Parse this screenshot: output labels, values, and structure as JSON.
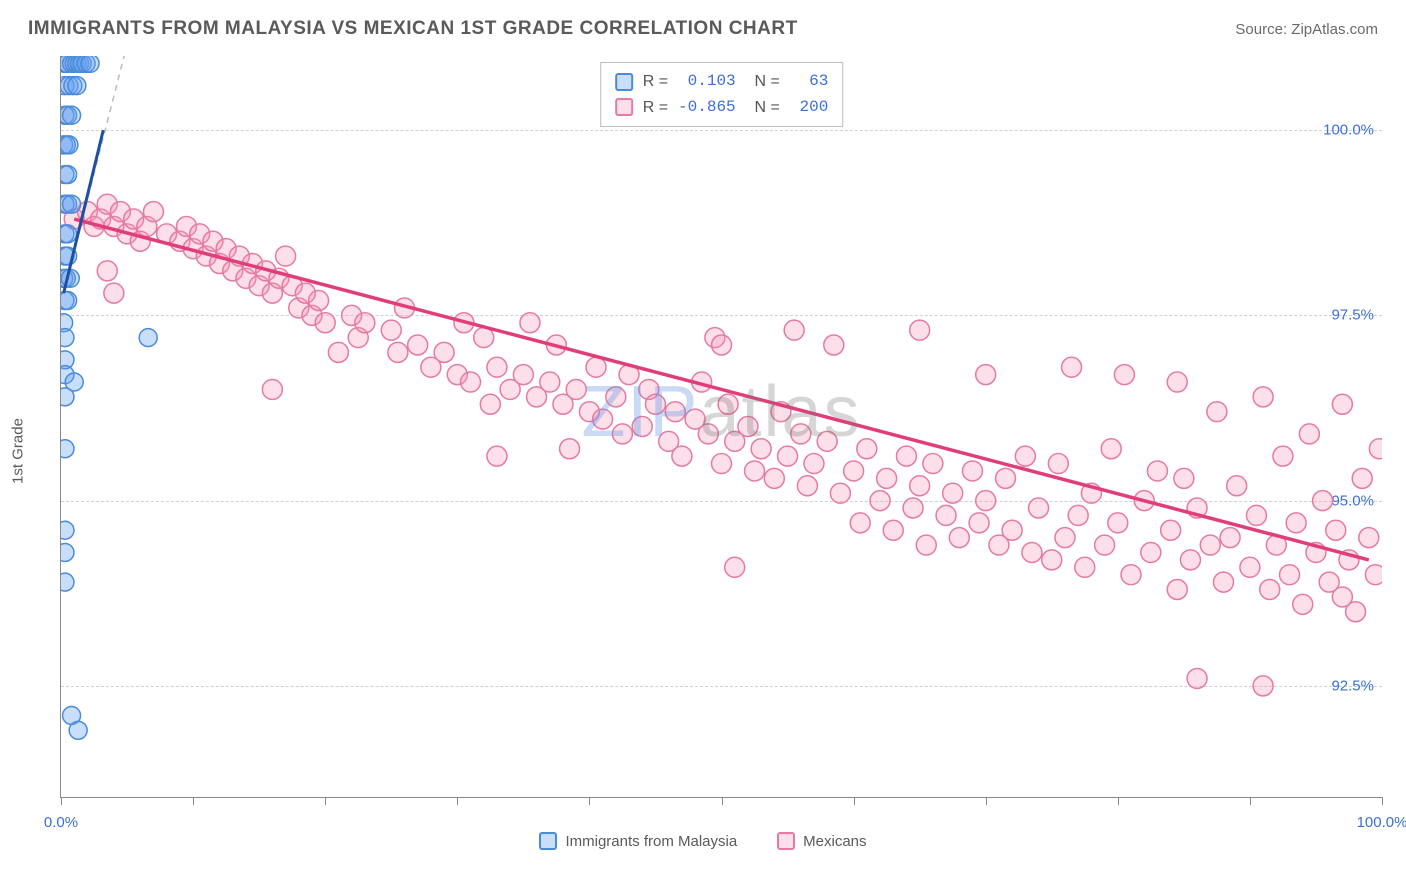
{
  "header": {
    "title": "IMMIGRANTS FROM MALAYSIA VS MEXICAN 1ST GRADE CORRELATION CHART",
    "source_prefix": "Source: ",
    "source_name": "ZipAtlas.com"
  },
  "axes": {
    "y_label": "1st Grade",
    "x_min": 0.0,
    "x_max": 100.0,
    "y_min": 91.0,
    "y_max": 101.0,
    "x_ticks": [
      0.0,
      10.0,
      20.0,
      30.0,
      40.0,
      50.0,
      60.0,
      70.0,
      80.0,
      90.0,
      100.0
    ],
    "x_tick_labels": {
      "0": "0.0%",
      "100": "100.0%"
    },
    "y_gridlines": [
      92.5,
      95.0,
      97.5,
      100.0
    ],
    "y_tick_labels": [
      "92.5%",
      "95.0%",
      "97.5%",
      "100.0%"
    ],
    "tick_label_color": "#3b6fd6",
    "axis_label_color": "#5a5a5a",
    "grid_color": "#d0d0d0"
  },
  "series": {
    "malaysia": {
      "label": "Immigrants from Malaysia",
      "fill": "rgba(100,160,240,0.35)",
      "stroke": "#4a8bd8",
      "trend_color": "#1e4fa3",
      "trend_extrapolate_color": "#bcbcbc",
      "R": "0.103",
      "N": "63",
      "marker_radius": 9,
      "trend": {
        "x1": 0.2,
        "y1": 97.8,
        "x2": 4.5,
        "y2": 100.9
      },
      "trend_visible_end": {
        "x": 3.2,
        "y": 100.0
      },
      "points": [
        [
          0.3,
          100.9
        ],
        [
          0.5,
          100.9
        ],
        [
          0.8,
          100.9
        ],
        [
          1.0,
          100.9
        ],
        [
          1.2,
          100.9
        ],
        [
          1.4,
          100.9
        ],
        [
          1.6,
          100.9
        ],
        [
          1.9,
          100.9
        ],
        [
          2.2,
          100.9
        ],
        [
          0.3,
          100.6
        ],
        [
          0.6,
          100.6
        ],
        [
          0.9,
          100.6
        ],
        [
          1.2,
          100.6
        ],
        [
          0.3,
          100.2
        ],
        [
          0.5,
          100.2
        ],
        [
          0.8,
          100.2
        ],
        [
          0.2,
          99.8
        ],
        [
          0.4,
          99.8
        ],
        [
          0.6,
          99.8
        ],
        [
          0.3,
          99.4
        ],
        [
          0.5,
          99.4
        ],
        [
          0.3,
          99.0
        ],
        [
          0.5,
          99.0
        ],
        [
          0.8,
          99.0
        ],
        [
          0.3,
          98.6
        ],
        [
          0.5,
          98.6
        ],
        [
          0.3,
          98.3
        ],
        [
          0.5,
          98.3
        ],
        [
          0.2,
          98.0
        ],
        [
          0.4,
          98.0
        ],
        [
          0.7,
          98.0
        ],
        [
          0.3,
          97.7
        ],
        [
          0.5,
          97.7
        ],
        [
          0.2,
          97.4
        ],
        [
          0.3,
          97.2
        ],
        [
          6.6,
          97.2
        ],
        [
          0.3,
          96.9
        ],
        [
          0.3,
          96.7
        ],
        [
          1.0,
          96.6
        ],
        [
          0.3,
          96.4
        ],
        [
          0.3,
          95.7
        ],
        [
          0.3,
          94.6
        ],
        [
          0.3,
          94.3
        ],
        [
          0.3,
          93.9
        ],
        [
          0.8,
          92.1
        ],
        [
          1.3,
          91.9
        ]
      ]
    },
    "mexican": {
      "label": "Mexicans",
      "fill": "rgba(245,150,180,0.30)",
      "stroke": "#e77aa0",
      "trend_color": "#e13d7a",
      "R": "-0.865",
      "N": "200",
      "marker_radius": 10,
      "trend": {
        "x1": 1.0,
        "y1": 98.8,
        "x2": 99.0,
        "y2": 94.2
      },
      "points": [
        [
          1.0,
          98.8
        ],
        [
          2.0,
          98.9
        ],
        [
          2.5,
          98.7
        ],
        [
          3.0,
          98.8
        ],
        [
          3.5,
          99.0
        ],
        [
          4.0,
          98.7
        ],
        [
          4.5,
          98.9
        ],
        [
          5.0,
          98.6
        ],
        [
          5.5,
          98.8
        ],
        [
          6.0,
          98.5
        ],
        [
          6.5,
          98.7
        ],
        [
          7.0,
          98.9
        ],
        [
          3.5,
          98.1
        ],
        [
          8.0,
          98.6
        ],
        [
          4.0,
          97.8
        ],
        [
          9.0,
          98.5
        ],
        [
          9.5,
          98.7
        ],
        [
          10.0,
          98.4
        ],
        [
          10.5,
          98.6
        ],
        [
          11.0,
          98.3
        ],
        [
          11.5,
          98.5
        ],
        [
          12.0,
          98.2
        ],
        [
          12.5,
          98.4
        ],
        [
          13.0,
          98.1
        ],
        [
          13.5,
          98.3
        ],
        [
          14.0,
          98.0
        ],
        [
          14.5,
          98.2
        ],
        [
          15.0,
          97.9
        ],
        [
          15.5,
          98.1
        ],
        [
          16.0,
          97.8
        ],
        [
          16.5,
          98.0
        ],
        [
          17.0,
          98.3
        ],
        [
          17.5,
          97.9
        ],
        [
          18.0,
          97.6
        ],
        [
          18.5,
          97.8
        ],
        [
          19.0,
          97.5
        ],
        [
          19.5,
          97.7
        ],
        [
          20.0,
          97.4
        ],
        [
          21.0,
          97.0
        ],
        [
          22.0,
          97.5
        ],
        [
          22.5,
          97.2
        ],
        [
          23.0,
          97.4
        ],
        [
          16.0,
          96.5
        ],
        [
          25.0,
          97.3
        ],
        [
          25.5,
          97.0
        ],
        [
          26.0,
          97.6
        ],
        [
          27.0,
          97.1
        ],
        [
          28.0,
          96.8
        ],
        [
          29.0,
          97.0
        ],
        [
          30.0,
          96.7
        ],
        [
          30.5,
          97.4
        ],
        [
          31.0,
          96.6
        ],
        [
          32.0,
          97.2
        ],
        [
          32.5,
          96.3
        ],
        [
          33.0,
          96.8
        ],
        [
          34.0,
          96.5
        ],
        [
          35.0,
          96.7
        ],
        [
          35.5,
          97.4
        ],
        [
          36.0,
          96.4
        ],
        [
          37.0,
          96.6
        ],
        [
          37.5,
          97.1
        ],
        [
          38.0,
          96.3
        ],
        [
          38.5,
          95.7
        ],
        [
          39.0,
          96.5
        ],
        [
          40.0,
          96.2
        ],
        [
          40.5,
          96.8
        ],
        [
          41.0,
          96.1
        ],
        [
          42.0,
          96.4
        ],
        [
          42.5,
          95.9
        ],
        [
          43.0,
          96.7
        ],
        [
          44.0,
          96.0
        ],
        [
          44.5,
          96.5
        ],
        [
          45.0,
          96.3
        ],
        [
          46.0,
          95.8
        ],
        [
          46.5,
          96.2
        ],
        [
          47.0,
          95.6
        ],
        [
          48.0,
          96.1
        ],
        [
          48.5,
          96.6
        ],
        [
          49.0,
          95.9
        ],
        [
          50.0,
          95.5
        ],
        [
          50.5,
          96.3
        ],
        [
          51.0,
          95.8
        ],
        [
          52.0,
          96.0
        ],
        [
          52.5,
          95.4
        ],
        [
          53.0,
          95.7
        ],
        [
          54.0,
          95.3
        ],
        [
          54.5,
          96.2
        ],
        [
          55.0,
          95.6
        ],
        [
          55.5,
          97.3
        ],
        [
          56.0,
          95.9
        ],
        [
          56.5,
          95.2
        ],
        [
          57.0,
          95.5
        ],
        [
          58.0,
          95.8
        ],
        [
          58.5,
          97.1
        ],
        [
          59.0,
          95.1
        ],
        [
          60.0,
          95.4
        ],
        [
          49.5,
          97.2
        ],
        [
          60.5,
          94.7
        ],
        [
          61.0,
          95.7
        ],
        [
          62.0,
          95.0
        ],
        [
          50.0,
          97.1
        ],
        [
          62.5,
          95.3
        ],
        [
          63.0,
          94.6
        ],
        [
          64.0,
          95.6
        ],
        [
          64.5,
          94.9
        ],
        [
          65.0,
          95.2
        ],
        [
          65.0,
          97.3
        ],
        [
          65.5,
          94.4
        ],
        [
          66.0,
          95.5
        ],
        [
          67.0,
          94.8
        ],
        [
          67.5,
          95.1
        ],
        [
          68.0,
          94.5
        ],
        [
          69.0,
          95.4
        ],
        [
          69.5,
          94.7
        ],
        [
          51.0,
          94.1
        ],
        [
          70.0,
          95.0
        ],
        [
          71.0,
          94.4
        ],
        [
          71.5,
          95.3
        ],
        [
          72.0,
          94.6
        ],
        [
          73.0,
          95.6
        ],
        [
          73.5,
          94.3
        ],
        [
          70.0,
          96.7
        ],
        [
          74.0,
          94.9
        ],
        [
          75.0,
          94.2
        ],
        [
          75.5,
          95.5
        ],
        [
          76.0,
          94.5
        ],
        [
          76.5,
          96.8
        ],
        [
          77.0,
          94.8
        ],
        [
          77.5,
          94.1
        ],
        [
          78.0,
          95.1
        ],
        [
          79.0,
          94.4
        ],
        [
          79.5,
          95.7
        ],
        [
          80.0,
          94.7
        ],
        [
          80.5,
          96.7
        ],
        [
          81.0,
          94.0
        ],
        [
          82.0,
          95.0
        ],
        [
          82.5,
          94.3
        ],
        [
          83.0,
          95.4
        ],
        [
          84.0,
          94.6
        ],
        [
          84.5,
          93.8
        ],
        [
          84.5,
          96.6
        ],
        [
          85.0,
          95.3
        ],
        [
          85.5,
          94.2
        ],
        [
          86.0,
          94.9
        ],
        [
          87.0,
          94.4
        ],
        [
          87.5,
          96.2
        ],
        [
          88.0,
          93.9
        ],
        [
          88.5,
          94.5
        ],
        [
          89.0,
          95.2
        ],
        [
          90.0,
          94.1
        ],
        [
          86.0,
          92.6
        ],
        [
          90.5,
          94.8
        ],
        [
          91.0,
          96.4
        ],
        [
          91.5,
          93.8
        ],
        [
          92.0,
          94.4
        ],
        [
          92.5,
          95.6
        ],
        [
          93.0,
          94.0
        ],
        [
          93.5,
          94.7
        ],
        [
          94.0,
          93.6
        ],
        [
          94.5,
          95.9
        ],
        [
          95.0,
          94.3
        ],
        [
          91.0,
          92.5
        ],
        [
          95.5,
          95.0
        ],
        [
          96.0,
          93.9
        ],
        [
          96.5,
          94.6
        ],
        [
          97.0,
          96.3
        ],
        [
          97.5,
          94.2
        ],
        [
          98.0,
          93.5
        ],
        [
          98.5,
          95.3
        ],
        [
          99.0,
          94.5
        ],
        [
          97.0,
          93.7
        ],
        [
          99.5,
          94.0
        ],
        [
          33.0,
          95.6
        ],
        [
          99.8,
          95.7
        ]
      ]
    }
  },
  "legend_bottom": [
    {
      "key": "malaysia"
    },
    {
      "key": "mexican"
    }
  ],
  "stats_box": {
    "rows": [
      {
        "key": "malaysia"
      },
      {
        "key": "mexican"
      }
    ],
    "labels": {
      "R": "R =",
      "N": "N ="
    }
  },
  "watermark": {
    "part1": "ZIP",
    "part2": "atlas"
  },
  "colors": {
    "background": "#ffffff",
    "title": "#5a5a5a",
    "axis": "#888888",
    "stat_value": "#3b6fd6"
  }
}
